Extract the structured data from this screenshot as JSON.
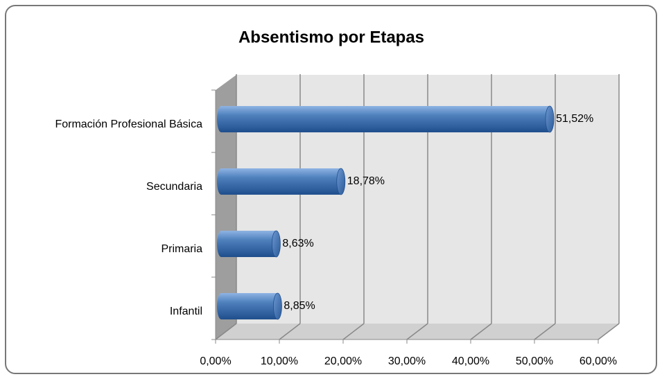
{
  "chart_data": {
    "type": "bar3d_horizontal",
    "title": "Absentismo por Etapas",
    "categories": [
      "Formación Profesional Básica",
      "Secundaria",
      "Primaria",
      "Infantil"
    ],
    "values": [
      51.52,
      18.78,
      8.63,
      8.85
    ],
    "value_labels": [
      "51,52%",
      "18,78%",
      "8,63%",
      "8,85%"
    ],
    "color": "#4f81bd",
    "xlim": [
      0,
      60
    ],
    "xticks": [
      {
        "value": 0,
        "label": "0,00%"
      },
      {
        "value": 10,
        "label": "10,00%"
      },
      {
        "value": 20,
        "label": "20,00%"
      },
      {
        "value": 30,
        "label": "30,00%"
      },
      {
        "value": 40,
        "label": "40,00%"
      },
      {
        "value": 50,
        "label": "50,00%"
      },
      {
        "value": 60,
        "label": "60,00%"
      }
    ],
    "grid": true
  }
}
